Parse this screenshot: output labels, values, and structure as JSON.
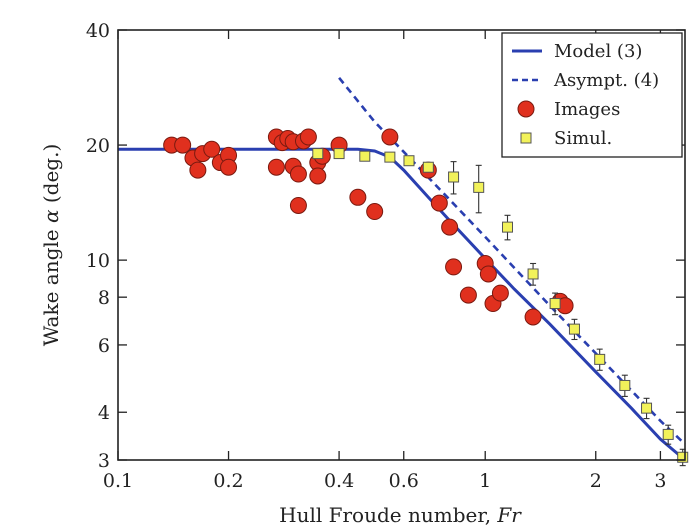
{
  "chart_data": {
    "type": "scatter",
    "title": "",
    "xlabel": "Hull Froude number, ",
    "xlabel_italic": "Fr",
    "ylabel": "Wake angle  ",
    "ylabel_symbol": "α",
    "ylabel_unit": " (deg.)",
    "xscale": "log",
    "yscale": "log",
    "xlim": [
      0.1,
      3.5
    ],
    "ylim": [
      3,
      40
    ],
    "xticks": [
      {
        "v": 0.1,
        "label": "0.1"
      },
      {
        "v": 0.2,
        "label": "0.2"
      },
      {
        "v": 0.4,
        "label": "0.4"
      },
      {
        "v": 0.6,
        "label": "0.6"
      },
      {
        "v": 1,
        "label": "1"
      },
      {
        "v": 2,
        "label": "2"
      },
      {
        "v": 3,
        "label": "3"
      }
    ],
    "yticks": [
      {
        "v": 3,
        "label": "3"
      },
      {
        "v": 4,
        "label": "4"
      },
      {
        "v": 6,
        "label": "6"
      },
      {
        "v": 8,
        "label": "8"
      },
      {
        "v": 10,
        "label": "10"
      },
      {
        "v": 20,
        "label": "20"
      },
      {
        "v": 40,
        "label": "40"
      }
    ],
    "legend_position": "top-right",
    "colors": {
      "model": "#2a3fb0",
      "images": "#e0301e",
      "simul": "#f2f25a",
      "axis": "#222222"
    },
    "series": [
      {
        "name": "Model (3)",
        "kind": "line",
        "x": [
          0.1,
          0.2,
          0.3,
          0.4,
          0.45,
          0.5,
          0.55,
          0.6,
          0.7,
          0.8,
          1.0,
          1.2,
          1.5,
          2.0,
          2.5,
          3.0,
          3.5
        ],
        "y": [
          19.5,
          19.5,
          19.5,
          19.5,
          19.5,
          19.3,
          18.6,
          17.2,
          14.6,
          12.7,
          10.1,
          8.4,
          6.8,
          5.1,
          4.1,
          3.4,
          2.95
        ]
      },
      {
        "name": "Asympt. (4)",
        "kind": "dashed",
        "x": [
          0.4,
          0.5,
          0.6,
          0.8,
          1.0,
          1.5,
          2.0,
          3.0,
          3.5
        ],
        "y": [
          30,
          23,
          19.2,
          14.4,
          11.5,
          7.6,
          5.7,
          3.8,
          3.3
        ]
      },
      {
        "name": "Images",
        "kind": "circle",
        "x": [
          0.14,
          0.15,
          0.16,
          0.165,
          0.17,
          0.18,
          0.19,
          0.2,
          0.2,
          0.27,
          0.27,
          0.28,
          0.29,
          0.3,
          0.3,
          0.31,
          0.31,
          0.32,
          0.33,
          0.35,
          0.35,
          0.36,
          0.4,
          0.45,
          0.5,
          0.55,
          0.7,
          0.75,
          0.8,
          0.82,
          0.9,
          1.0,
          1.02,
          1.05,
          1.1,
          1.35,
          1.6,
          1.65
        ],
        "y": [
          20,
          20,
          18.5,
          17.2,
          19,
          19.5,
          18,
          18.8,
          17.5,
          21,
          17.5,
          20.3,
          20.8,
          20.4,
          17.6,
          16.8,
          13.9,
          20.5,
          21,
          18,
          16.6,
          18.7,
          20,
          14.6,
          13.4,
          21,
          17.2,
          14.1,
          12.2,
          9.6,
          8.1,
          9.8,
          9.2,
          7.7,
          8.2,
          7.1,
          7.8,
          7.6
        ]
      },
      {
        "name": "Simul.",
        "kind": "square",
        "x": [
          0.35,
          0.4,
          0.47,
          0.55,
          0.62,
          0.7,
          0.82,
          0.96,
          1.15,
          1.35,
          1.55,
          1.75,
          2.05,
          2.4,
          2.75,
          3.15,
          3.45
        ],
        "y": [
          19,
          19,
          18.7,
          18.6,
          18.2,
          17.5,
          16.5,
          15.5,
          12.2,
          9.2,
          7.7,
          6.6,
          5.5,
          4.7,
          4.1,
          3.5,
          3.05
        ],
        "err": [
          0,
          0,
          0,
          0,
          0,
          0,
          1.6,
          2.2,
          0.9,
          0.6,
          0.5,
          0.4,
          0.35,
          0.3,
          0.25,
          0.2,
          0.15
        ]
      }
    ]
  }
}
